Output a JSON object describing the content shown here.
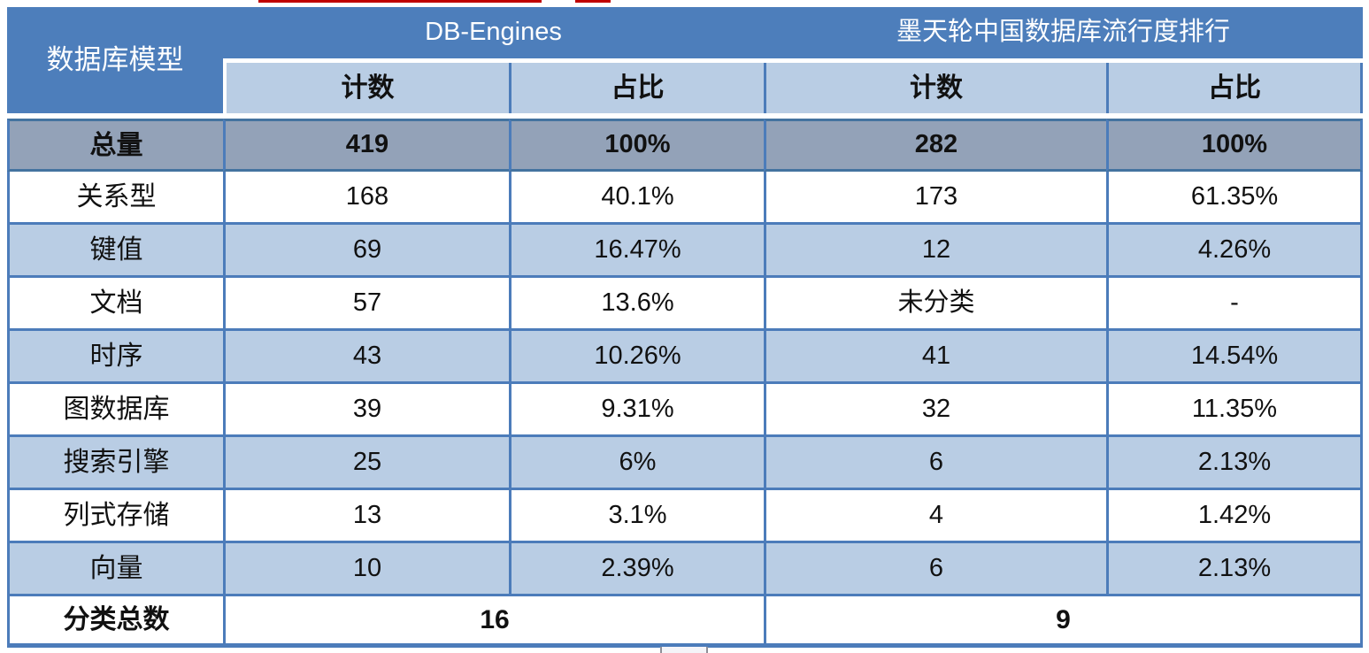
{
  "table": {
    "header": {
      "model_column": "数据库模型",
      "group1": "DB-Engines",
      "group2": "墨天轮中国数据库流行度排行",
      "subheaders": [
        "计数",
        "占比",
        "计数",
        "占比"
      ]
    },
    "rows": [
      {
        "model": "总量",
        "cells": [
          "419",
          "100%",
          "282",
          "100%"
        ]
      },
      {
        "model": "关系型",
        "cells": [
          "168",
          "40.1%",
          "173",
          "61.35%"
        ]
      },
      {
        "model": "键值",
        "cells": [
          "69",
          "16.47%",
          "12",
          "4.26%"
        ]
      },
      {
        "model": "文档",
        "cells": [
          "57",
          "13.6%",
          "未分类",
          "-"
        ]
      },
      {
        "model": "时序",
        "cells": [
          "43",
          "10.26%",
          "41",
          "14.54%"
        ]
      },
      {
        "model": "图数据库",
        "cells": [
          "39",
          "9.31%",
          "32",
          "11.35%"
        ]
      },
      {
        "model": "搜索引擎",
        "cells": [
          "25",
          "6%",
          "6",
          "2.13%"
        ]
      },
      {
        "model": "列式存储",
        "cells": [
          "13",
          "3.1%",
          "4",
          "1.42%"
        ]
      },
      {
        "model": "向量",
        "cells": [
          "10",
          "2.39%",
          "6",
          "2.13%"
        ]
      }
    ],
    "footer": {
      "label": "分类总数",
      "db_engines_total": "16",
      "modb_total": "9"
    }
  },
  "colors": {
    "header_blue": "#4d7ebb",
    "light_blue_row": "#b9cde4",
    "total_row_gray": "#93a2b8",
    "border_blue": "#4c7cba",
    "dark_row_border": "#44739f",
    "red_underline": "#c00000"
  },
  "chart_data": {
    "type": "table",
    "columns": [
      "数据库模型",
      "DB-Engines 计数",
      "DB-Engines 占比",
      "墨天轮中国数据库流行度排行 计数",
      "墨天轮中国数据库流行度排行 占比"
    ],
    "rows": [
      [
        "总量",
        "419",
        "100%",
        "282",
        "100%"
      ],
      [
        "关系型",
        "168",
        "40.1%",
        "173",
        "61.35%"
      ],
      [
        "键值",
        "69",
        "16.47%",
        "12",
        "4.26%"
      ],
      [
        "文档",
        "57",
        "13.6%",
        "未分类",
        "-"
      ],
      [
        "时序",
        "43",
        "10.26%",
        "41",
        "14.54%"
      ],
      [
        "图数据库",
        "39",
        "9.31%",
        "32",
        "11.35%"
      ],
      [
        "搜索引擎",
        "25",
        "6%",
        "6",
        "2.13%"
      ],
      [
        "列式存储",
        "13",
        "3.1%",
        "4",
        "1.42%"
      ],
      [
        "向量",
        "10",
        "2.39%",
        "6",
        "2.13%"
      ]
    ],
    "footer": {
      "label": "分类总数",
      "db_engines_categories": "16",
      "modb_categories": "9"
    }
  }
}
